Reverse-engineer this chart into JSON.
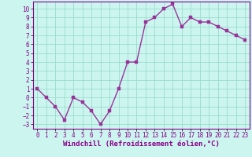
{
  "x": [
    0,
    1,
    2,
    3,
    4,
    5,
    6,
    7,
    8,
    9,
    10,
    11,
    12,
    13,
    14,
    15,
    16,
    17,
    18,
    19,
    20,
    21,
    22,
    23
  ],
  "y": [
    1,
    0,
    -1,
    -2.5,
    0,
    -0.5,
    -1.5,
    -3,
    -1.5,
    1,
    4,
    4,
    8.5,
    9,
    10,
    10.5,
    8,
    9,
    8.5,
    8.5,
    8,
    7.5,
    7,
    6.5
  ],
  "line_color": "#993399",
  "marker_color": "#993399",
  "bg_color": "#ccf5f0",
  "grid_color": "#99ddcc",
  "xlabel": "Windchill (Refroidissement éolien,°C)",
  "xlim": [
    -0.5,
    23.5
  ],
  "ylim": [
    -3.5,
    10.8
  ],
  "yticks": [
    -3,
    -2,
    -1,
    0,
    1,
    2,
    3,
    4,
    5,
    6,
    7,
    8,
    9,
    10
  ],
  "xticks": [
    0,
    1,
    2,
    3,
    4,
    5,
    6,
    7,
    8,
    9,
    10,
    11,
    12,
    13,
    14,
    15,
    16,
    17,
    18,
    19,
    20,
    21,
    22,
    23
  ],
  "xlabel_fontsize": 6.5,
  "tick_fontsize": 5.5,
  "line_width": 1.0,
  "marker_size": 2.5,
  "label_color": "#880088"
}
